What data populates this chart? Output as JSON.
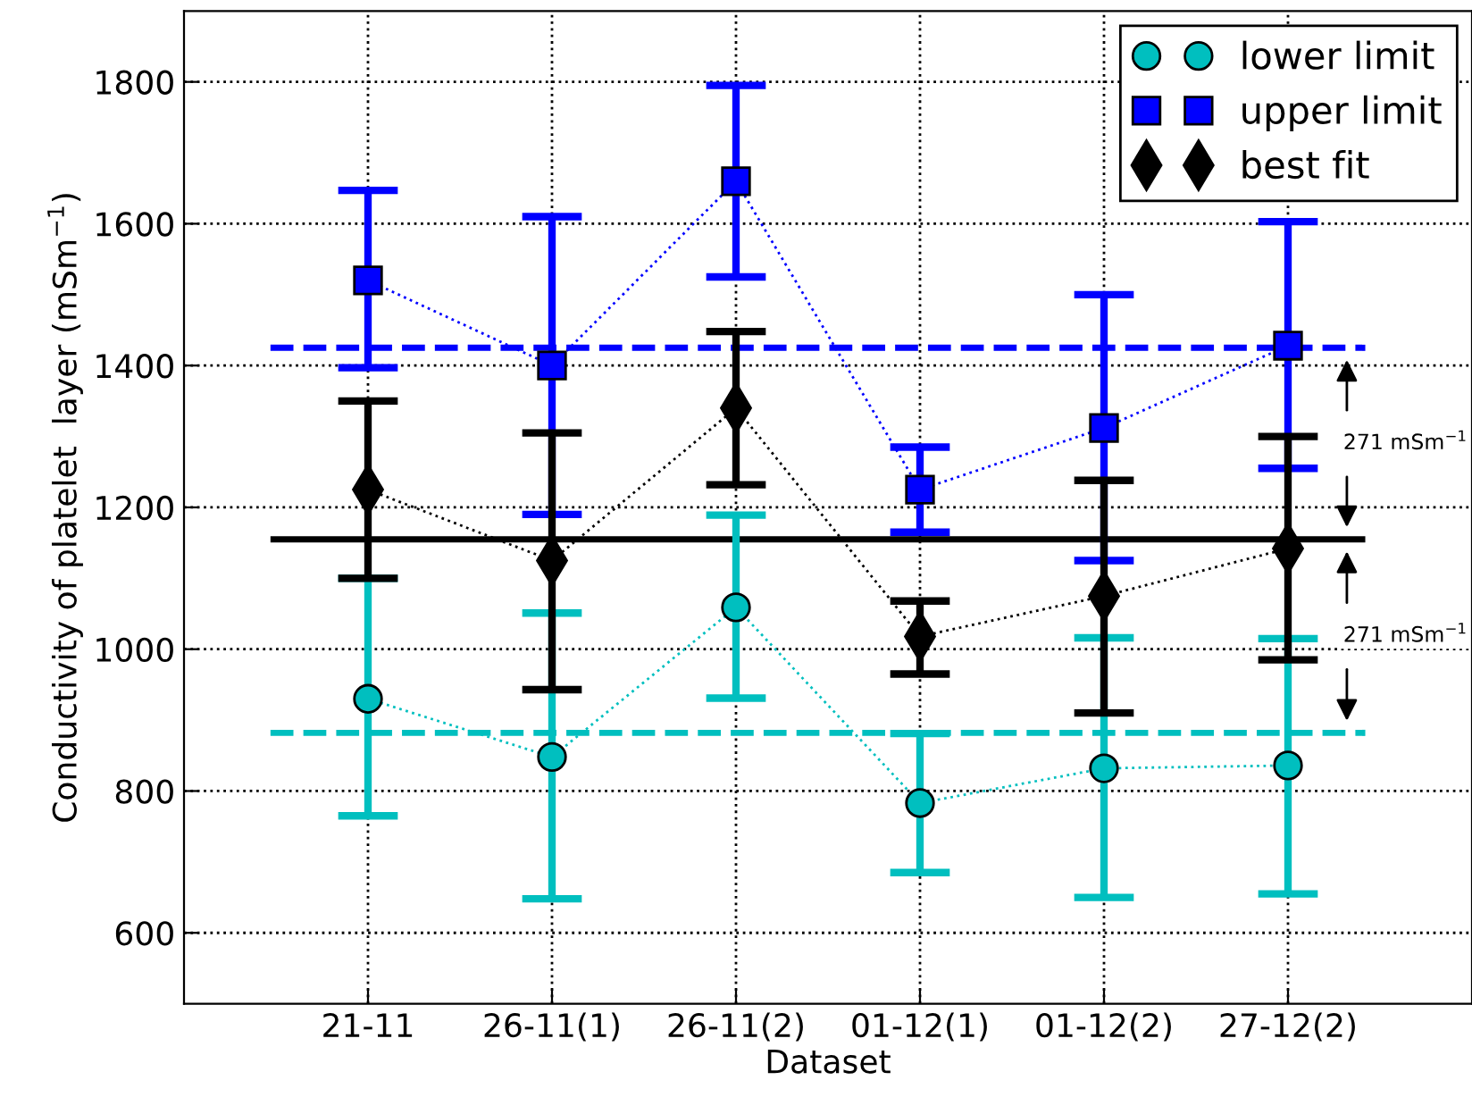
{
  "chart_data": {
    "type": "line",
    "xlabel": "Dataset",
    "ylabel": "Conductivity of platelet  layer (mSm$^{−1}$)",
    "categories": [
      "21-11",
      "26-11(1)",
      "26-11(2)",
      "01-12(1)",
      "01-12(2)",
      "27-12(2)"
    ],
    "series": [
      {
        "name": "lower limit",
        "color": "#00bfbf",
        "marker": "circle",
        "line_style": "dotted",
        "values": [
          930,
          848,
          1059,
          783,
          832,
          836
        ],
        "errors": [
          [
            765,
            1100
          ],
          [
            648,
            1051
          ],
          [
            931,
            1189
          ],
          [
            685,
            881
          ],
          [
            650,
            1016
          ],
          [
            655,
            1015
          ]
        ]
      },
      {
        "name": "upper limit",
        "color": "#0000ff",
        "marker": "square",
        "line_style": "dotted",
        "values": [
          1520,
          1400,
          1660,
          1225,
          1312,
          1428
        ],
        "errors": [
          [
            1397,
            1647
          ],
          [
            1190,
            1610
          ],
          [
            1525,
            1795
          ],
          [
            1165,
            1285
          ],
          [
            1125,
            1500
          ],
          [
            1255,
            1603
          ]
        ]
      },
      {
        "name": "best fit",
        "color": "#000000",
        "marker": "diamond",
        "line_style": "dotted",
        "values": [
          1225,
          1125,
          1340,
          1018,
          1075,
          1142
        ],
        "errors": [
          [
            1100,
            1350
          ],
          [
            943,
            1305
          ],
          [
            1232,
            1448
          ],
          [
            965,
            1068
          ],
          [
            910,
            1238
          ],
          [
            985,
            1300
          ]
        ]
      }
    ],
    "ref_lines": [
      {
        "axis": "y",
        "value": 1425,
        "color": "#0000ff",
        "line_style": "dashed"
      },
      {
        "axis": "y",
        "value": 1155,
        "color": "#000000",
        "line_style": "solid"
      },
      {
        "axis": "y",
        "value": 882,
        "color": "#00bfbf",
        "line_style": "dashed"
      }
    ],
    "annotations": [
      "271 mSm$^{−1}$",
      "271 mSm$^{−1}$"
    ],
    "ylim": [
      500,
      1900
    ],
    "yticks": [
      600,
      800,
      1000,
      1200,
      1400,
      1600,
      1800
    ],
    "grid": true,
    "legend": "top right"
  }
}
